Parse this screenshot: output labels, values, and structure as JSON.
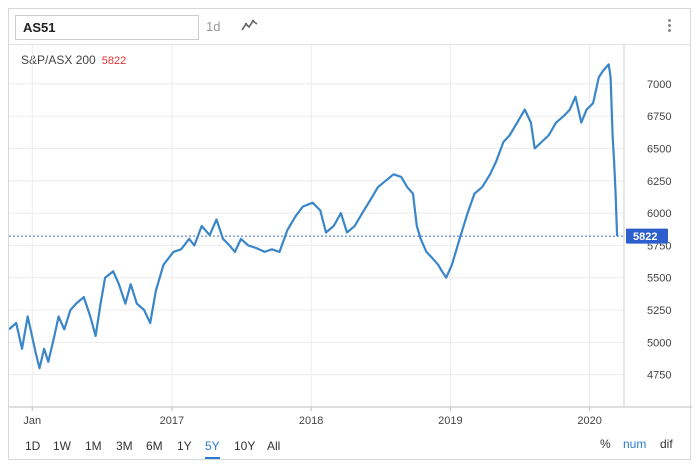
{
  "toolbar": {
    "symbol_value": "AS51",
    "interval_label": "1d",
    "chart_type_icon": "line-chart-icon",
    "menu_icon": "kebab-menu-icon"
  },
  "legend": {
    "name": "S&P/ASX 200",
    "value": "5822"
  },
  "colors": {
    "line": "#3a86c8",
    "price_tag_bg": "#2d5fcc",
    "legend_value": "#dd3333",
    "active": "#2b7bd1"
  },
  "range_buttons": [
    "1D",
    "1W",
    "1M",
    "3M",
    "6M",
    "1Y",
    "5Y",
    "10Y",
    "All"
  ],
  "active_range": "5Y",
  "scale_buttons": [
    "%",
    "num",
    "dif"
  ],
  "active_scale": "num",
  "chart_data": {
    "type": "line",
    "title": "",
    "xlabel": "",
    "ylabel": "",
    "x_tick_labels": [
      "Jan",
      "2017",
      "2018",
      "2019",
      "2020"
    ],
    "x_tick_dates": [
      "2016-01-01",
      "2017-01-01",
      "2018-01-01",
      "2019-01-01",
      "2020-01-01"
    ],
    "xlim": [
      "2015-11-01",
      "2020-03-31"
    ],
    "y_tick_labels": [
      "4750",
      "5000",
      "5250",
      "5500",
      "5750",
      "6000",
      "6250",
      "6500",
      "6750",
      "7000"
    ],
    "ylim": [
      4500,
      7300
    ],
    "grid": true,
    "last_price": 5822,
    "series": [
      {
        "x": [
          "2015-11-01",
          "2015-11-20",
          "2015-12-05",
          "2015-12-20",
          "2016-01-10",
          "2016-01-20",
          "2016-02-01",
          "2016-02-12",
          "2016-02-28",
          "2016-03-10",
          "2016-03-25",
          "2016-04-10",
          "2016-04-25",
          "2016-05-15",
          "2016-06-01",
          "2016-06-15",
          "2016-06-28",
          "2016-07-10",
          "2016-07-31",
          "2016-08-15",
          "2016-09-01",
          "2016-09-15",
          "2016-10-01",
          "2016-10-20",
          "2016-11-05",
          "2016-11-20",
          "2016-12-10",
          "2017-01-05",
          "2017-01-25",
          "2017-02-15",
          "2017-03-01",
          "2017-03-20",
          "2017-04-10",
          "2017-04-28",
          "2017-05-15",
          "2017-06-01",
          "2017-06-15",
          "2017-07-01",
          "2017-07-20",
          "2017-08-10",
          "2017-09-01",
          "2017-09-20",
          "2017-10-10",
          "2017-10-31",
          "2017-11-20",
          "2017-12-10",
          "2018-01-05",
          "2018-01-25",
          "2018-02-09",
          "2018-03-01",
          "2018-03-20",
          "2018-04-05",
          "2018-04-25",
          "2018-05-15",
          "2018-06-05",
          "2018-06-25",
          "2018-07-15",
          "2018-08-05",
          "2018-08-25",
          "2018-09-10",
          "2018-09-25",
          "2018-10-05",
          "2018-10-15",
          "2018-10-30",
          "2018-11-15",
          "2018-11-30",
          "2018-12-10",
          "2018-12-21",
          "2019-01-05",
          "2019-01-25",
          "2019-02-15",
          "2019-03-05",
          "2019-03-25",
          "2019-04-15",
          "2019-05-01",
          "2019-05-20",
          "2019-06-05",
          "2019-06-25",
          "2019-07-15",
          "2019-07-31",
          "2019-08-10",
          "2019-08-28",
          "2019-09-15",
          "2019-10-05",
          "2019-10-25",
          "2019-11-10",
          "2019-11-25",
          "2019-12-10",
          "2019-12-24",
          "2020-01-10",
          "2020-01-25",
          "2020-02-05",
          "2020-02-20",
          "2020-02-25",
          "2020-03-01",
          "2020-03-05",
          "2020-03-09",
          "2020-03-13"
        ],
        "y": [
          5100,
          5150,
          4950,
          5200,
          4920,
          4800,
          4950,
          4850,
          5050,
          5200,
          5100,
          5250,
          5300,
          5350,
          5200,
          5050,
          5300,
          5500,
          5550,
          5450,
          5300,
          5450,
          5300,
          5250,
          5150,
          5400,
          5600,
          5700,
          5720,
          5800,
          5750,
          5900,
          5830,
          5950,
          5800,
          5750,
          5700,
          5800,
          5750,
          5730,
          5700,
          5720,
          5700,
          5870,
          5970,
          6050,
          6080,
          6020,
          5850,
          5900,
          6000,
          5850,
          5900,
          6000,
          6100,
          6200,
          6250,
          6300,
          6280,
          6200,
          6150,
          5900,
          5800,
          5700,
          5650,
          5600,
          5550,
          5500,
          5600,
          5800,
          6000,
          6150,
          6200,
          6300,
          6400,
          6550,
          6600,
          6700,
          6800,
          6700,
          6500,
          6550,
          6600,
          6700,
          6750,
          6800,
          6900,
          6700,
          6800,
          6850,
          7050,
          7100,
          7150,
          7050,
          6600,
          6400,
          6150,
          5822
        ]
      }
    ]
  }
}
